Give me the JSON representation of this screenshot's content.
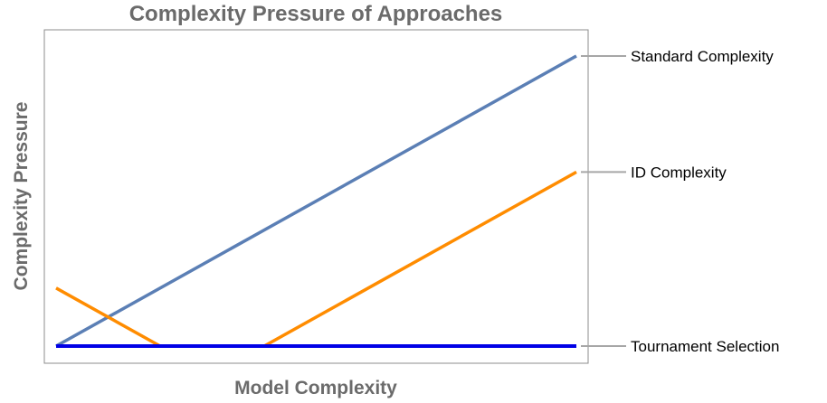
{
  "chart_data": {
    "type": "line",
    "title": "Complexity Pressure of Approaches",
    "xlabel": "Model Complexity",
    "ylabel": "Complexity Pressure",
    "xlim": [
      0,
      10
    ],
    "ylim": [
      0,
      10
    ],
    "grid": false,
    "legend": "right-end labels",
    "series": [
      {
        "name": "Standard Complexity",
        "color": "#5b7fb5",
        "points": [
          [
            0,
            0
          ],
          [
            10,
            10
          ]
        ]
      },
      {
        "name": "ID Complexity",
        "color": "#ff8c00",
        "segments": [
          [
            [
              0,
              2
            ],
            [
              2,
              0
            ]
          ],
          [
            [
              4,
              0
            ],
            [
              10,
              6
            ]
          ]
        ]
      },
      {
        "name": "Tournament Selection",
        "color": "#0000e6",
        "points": [
          [
            0,
            0
          ],
          [
            10,
            0
          ]
        ]
      }
    ]
  }
}
